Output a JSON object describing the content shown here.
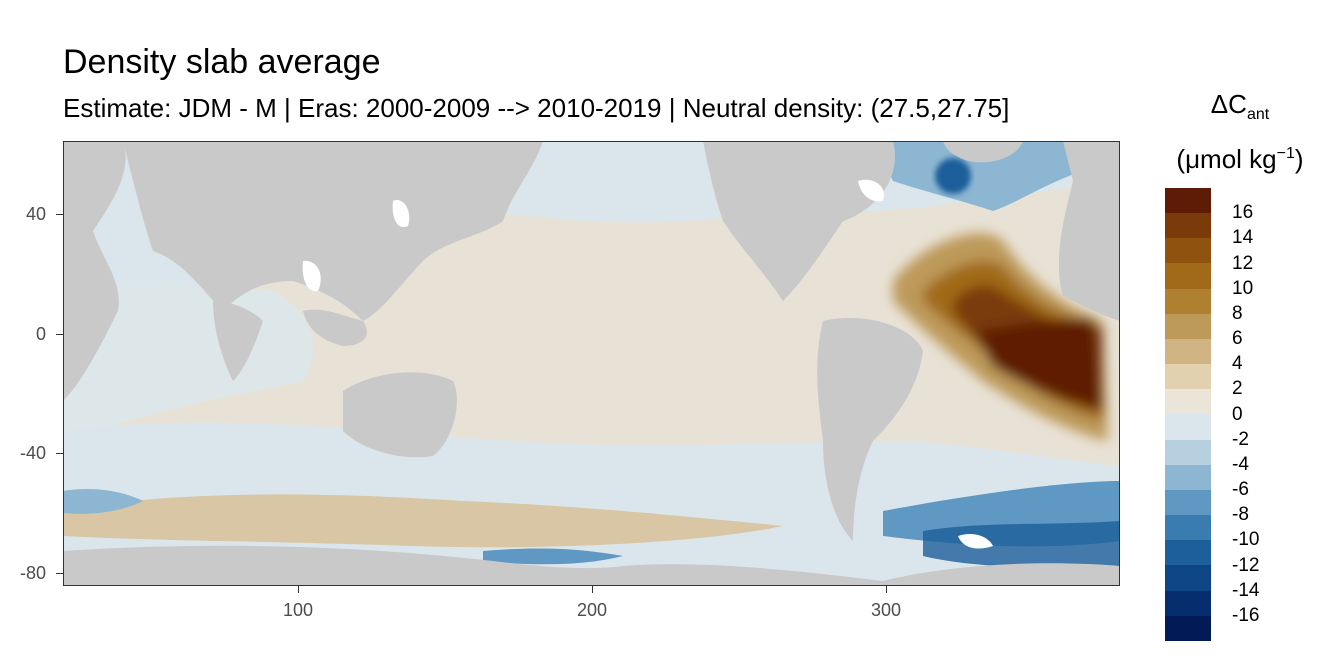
{
  "title": "Density slab average",
  "subtitle": "Estimate: JDM - M | Eras: 2000-2009 --> 2010-2019 | Neutral density: (27.5,27.75]",
  "x_ticks": [
    "100",
    "200",
    "300"
  ],
  "y_ticks": [
    "40",
    "0",
    "-40",
    "-80"
  ],
  "legend": {
    "title_main": "ΔC",
    "title_sub": "ant",
    "unit_main": "(μmol kg",
    "unit_sup": "−1",
    "unit_end": ")",
    "labels": [
      "16",
      "14",
      "12",
      "10",
      "8",
      "6",
      "4",
      "2",
      "0",
      "-2",
      "-4",
      "-6",
      "-8",
      "-10",
      "-12",
      "-14",
      "-16"
    ],
    "colors": [
      "#5e1c06",
      "#7a3a0a",
      "#8f530f",
      "#a06a18",
      "#ae8030",
      "#bd9a5a",
      "#d0b483",
      "#e2d1ae",
      "#ebe4d8",
      "#dbe6ec",
      "#b6d0e0",
      "#8cb6d2",
      "#5f98c2",
      "#3a7cb0",
      "#1d5f9b",
      "#0d4585",
      "#062e6e",
      "#021a55"
    ]
  },
  "colors": {
    "land": "#c9c9c9",
    "panel_border": "#333333",
    "tick_text": "#4d4d4d"
  }
}
